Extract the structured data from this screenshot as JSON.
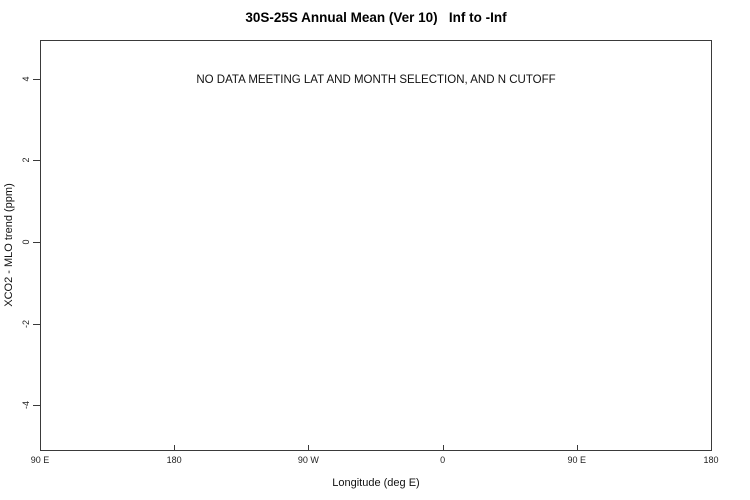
{
  "chart": {
    "title": "30S-25S Annual Mean (Ver 10)   Inf to -Inf",
    "annotation": "NO DATA MEETING LAT AND MONTH SELECTION, AND N CUTOFF",
    "xlabel": "Longitude (deg E)",
    "ylabel": "XCO2 - MLO trend (ppm)"
  },
  "chart_data": {
    "type": "scatter",
    "title": "30S-25S Annual Mean (Ver 10)   Inf to -Inf",
    "xlabel": "Longitude (deg E)",
    "ylabel": "XCO2 - MLO trend (ppm)",
    "series": [],
    "grid": false,
    "legend": false,
    "annotations": [
      {
        "text": "NO DATA MEETING LAT AND MONTH SELECTION, AND N CUTOFF",
        "x_fraction": 0.5,
        "y_value": 4
      }
    ],
    "x_axis": {
      "lim": [
        90,
        540
      ],
      "tick_direction": "in",
      "ticks": [
        {
          "value": 90,
          "label": "90 E"
        },
        {
          "value": 180,
          "label": "180"
        },
        {
          "value": 270,
          "label": "90 W"
        },
        {
          "value": 360,
          "label": "0"
        },
        {
          "value": 450,
          "label": "90 E"
        },
        {
          "value": 540,
          "label": "180"
        }
      ]
    },
    "y_axis": {
      "lim": [
        -5.1,
        4.95
      ],
      "tick_direction": "out",
      "ticks": [
        {
          "value": 4,
          "label": "4"
        },
        {
          "value": 2,
          "label": "2"
        },
        {
          "value": 0,
          "label": "0"
        },
        {
          "value": -2,
          "label": "-2"
        },
        {
          "value": -4,
          "label": "-4"
        }
      ]
    }
  },
  "colors": {
    "background": "#ffffff",
    "axis": "#3a3a3a",
    "text": "#111111"
  }
}
